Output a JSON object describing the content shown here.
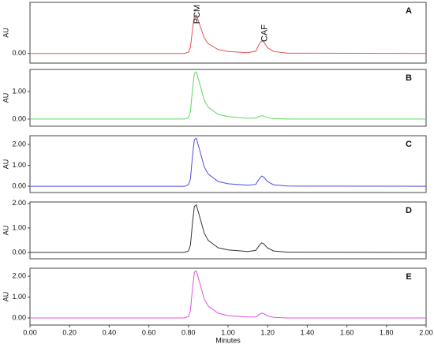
{
  "chart_data": [
    {
      "type": "line",
      "panel_label": "A",
      "y_label": "AU",
      "color": "#e8504f",
      "x": [
        0,
        0.78,
        0.8,
        0.81,
        0.82,
        0.83,
        0.84,
        0.86,
        0.88,
        0.9,
        0.95,
        1.0,
        1.1,
        1.14,
        1.16,
        1.17,
        1.18,
        1.2,
        1.23,
        1.3,
        2.0
      ],
      "values": [
        0,
        0,
        0.05,
        0.24,
        0.95,
        1.53,
        1.58,
        1.11,
        0.63,
        0.4,
        0.16,
        0.08,
        0.03,
        0.09,
        0.42,
        0.52,
        0.47,
        0.23,
        0.08,
        0.01,
        0
      ],
      "xlim": [
        0,
        2
      ],
      "ylim": [
        -0.4,
        2.1
      ],
      "yticks": [
        {
          "value": 0,
          "label": "0.00"
        }
      ],
      "annotations": [
        {
          "text": "PCM",
          "x": 0.83
        },
        {
          "text": "CAF",
          "x": 1.17
        }
      ]
    },
    {
      "type": "line",
      "panel_label": "B",
      "y_label": "AU",
      "color": "#5bd85b",
      "x": [
        0,
        0.78,
        0.8,
        0.81,
        0.82,
        0.83,
        0.84,
        0.86,
        0.88,
        0.9,
        0.95,
        1.0,
        1.1,
        1.14,
        1.16,
        1.17,
        1.18,
        1.2,
        1.23,
        1.3,
        2.0
      ],
      "values": [
        0,
        0,
        0.05,
        0.26,
        1.03,
        1.66,
        1.71,
        1.2,
        0.68,
        0.43,
        0.17,
        0.09,
        0.03,
        0.04,
        0.1,
        0.12,
        0.11,
        0.05,
        0.02,
        0,
        0
      ],
      "xlim": [
        0,
        2
      ],
      "ylim": [
        -0.26,
        1.8
      ],
      "yticks": [
        {
          "value": 0,
          "label": "0.00"
        },
        {
          "value": 1,
          "label": "1.00"
        }
      ]
    },
    {
      "type": "line",
      "panel_label": "C",
      "y_label": "AU",
      "color": "#4b4be0",
      "x": [
        0,
        0.78,
        0.8,
        0.81,
        0.82,
        0.83,
        0.84,
        0.86,
        0.88,
        0.9,
        0.95,
        1.0,
        1.1,
        1.14,
        1.16,
        1.17,
        1.18,
        1.2,
        1.23,
        1.3,
        2.0
      ],
      "values": [
        0,
        0,
        0.07,
        0.35,
        1.38,
        2.23,
        2.3,
        1.61,
        0.92,
        0.58,
        0.23,
        0.12,
        0.05,
        0.09,
        0.39,
        0.49,
        0.44,
        0.22,
        0.07,
        0.01,
        0
      ],
      "xlim": [
        0,
        2
      ],
      "ylim": [
        -0.3,
        2.42
      ],
      "yticks": [
        {
          "value": 0,
          "label": "0.00"
        },
        {
          "value": 1,
          "label": "1.00"
        },
        {
          "value": 2,
          "label": "2.00"
        }
      ]
    },
    {
      "type": "line",
      "panel_label": "D",
      "y_label": "AU",
      "color": "#333333",
      "x": [
        0,
        0.78,
        0.8,
        0.81,
        0.82,
        0.83,
        0.84,
        0.86,
        0.88,
        0.9,
        0.95,
        1.0,
        1.1,
        1.14,
        1.16,
        1.17,
        1.18,
        1.2,
        1.23,
        1.3,
        2.0
      ],
      "values": [
        0,
        0,
        0.06,
        0.29,
        1.16,
        1.88,
        1.94,
        1.36,
        0.78,
        0.49,
        0.19,
        0.1,
        0.04,
        0.08,
        0.31,
        0.39,
        0.35,
        0.18,
        0.06,
        0.01,
        0
      ],
      "xlim": [
        0,
        2
      ],
      "ylim": [
        -0.26,
        2.06
      ],
      "yticks": [
        {
          "value": 0,
          "label": "0.00"
        },
        {
          "value": 1,
          "label": "1.00"
        },
        {
          "value": 2,
          "label": "2.00"
        }
      ]
    },
    {
      "type": "line",
      "panel_label": "E",
      "y_label": "AU",
      "color": "#e050e0",
      "x_label": "Minutes",
      "x": [
        0,
        0.78,
        0.8,
        0.81,
        0.82,
        0.83,
        0.84,
        0.86,
        0.88,
        0.9,
        0.95,
        1.0,
        1.1,
        1.14,
        1.16,
        1.17,
        1.18,
        1.2,
        1.23,
        1.3,
        2.0
      ],
      "values": [
        0,
        0,
        0.07,
        0.34,
        1.36,
        2.19,
        2.26,
        1.58,
        0.9,
        0.57,
        0.23,
        0.11,
        0.05,
        0.05,
        0.18,
        0.23,
        0.21,
        0.1,
        0.03,
        0,
        0
      ],
      "xlim": [
        0,
        2
      ],
      "ylim": [
        -0.34,
        2.38
      ],
      "yticks": [
        {
          "value": 0,
          "label": "0.00"
        },
        {
          "value": 1,
          "label": "1.00"
        },
        {
          "value": 2,
          "label": "2.00"
        }
      ],
      "xticks": [
        {
          "value": 0,
          "label": "0.00"
        },
        {
          "value": 0.2,
          "label": "0.20"
        },
        {
          "value": 0.4,
          "label": "0.40"
        },
        {
          "value": 0.6,
          "label": "0.60"
        },
        {
          "value": 0.8,
          "label": "0.80"
        },
        {
          "value": 1,
          "label": "1.00"
        },
        {
          "value": 1.2,
          "label": "1.20"
        },
        {
          "value": 1.4,
          "label": "1.40"
        },
        {
          "value": 1.6,
          "label": "1.60"
        },
        {
          "value": 1.8,
          "label": "1.80"
        },
        {
          "value": 2,
          "label": "2.00"
        }
      ]
    }
  ]
}
